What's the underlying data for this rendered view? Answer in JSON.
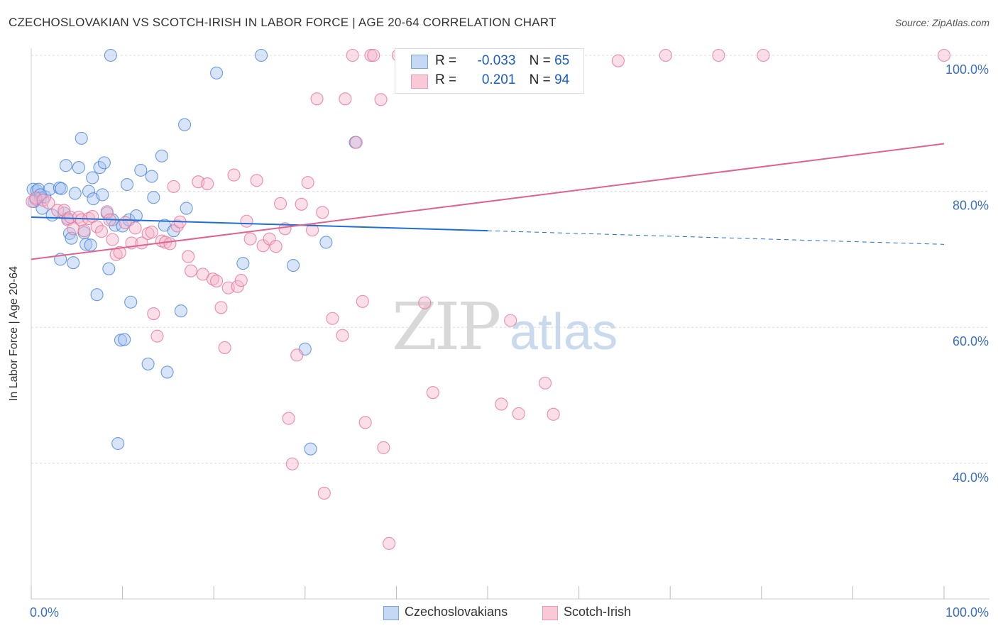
{
  "title": "CZECHOSLOVAKIAN VS SCOTCH-IRISH IN LABOR FORCE | AGE 20-64 CORRELATION CHART",
  "source": "Source: ZipAtlas.com",
  "watermark": {
    "zip": "ZIP",
    "atlas": "atlas"
  },
  "legend": {
    "rows": [
      {
        "r_label": "R =",
        "r_value": "-0.033",
        "n_label": "N =",
        "n_value": "65"
      },
      {
        "r_label": "R =",
        "r_value": "0.201",
        "n_label": "N =",
        "n_value": "94"
      }
    ]
  },
  "chart_data": {
    "type": "scatter",
    "title": "CZECHOSLOVAKIAN VS SCOTCH-IRISH IN LABOR FORCE | AGE 20-64 CORRELATION CHART",
    "xlabel": "",
    "ylabel": "In Labor Force | Age 20-64",
    "xlim": [
      0,
      100
    ],
    "ylim": [
      19,
      103
    ],
    "x_tick_labels": [
      "0.0%",
      "100.0%"
    ],
    "y_tick_labels": [
      "100.0%",
      "80.0%",
      "60.0%",
      "40.0%"
    ],
    "y_ticks": [
      100,
      80,
      60,
      40
    ],
    "grid": true,
    "colors": {
      "blue": "#4a86d8",
      "pink": "#e8729a",
      "blue_fill": "#a9c4ef",
      "pink_fill": "#f5b9cc",
      "axis_text": "#3b6fc8"
    },
    "series": [
      {
        "name": "Czechoslovakians",
        "color": "blue",
        "trend": {
          "x0": 0,
          "y0": 76.2,
          "x1": 50,
          "y1": 74.2,
          "dash_to_x": 100,
          "dash_to_y": 72.2
        },
        "points": [
          [
            0.2,
            80.3
          ],
          [
            0.5,
            78.8
          ],
          [
            0.6,
            80.1
          ],
          [
            0.8,
            80.3
          ],
          [
            1.0,
            79.0
          ],
          [
            1.2,
            77.5
          ],
          [
            1.5,
            79.2
          ],
          [
            2.0,
            80.3
          ],
          [
            2.3,
            76.5
          ],
          [
            3.1,
            80.5
          ],
          [
            3.2,
            70.0
          ],
          [
            3.3,
            80.4
          ],
          [
            3.6,
            76.8
          ],
          [
            3.8,
            83.8
          ],
          [
            4.0,
            76.0
          ],
          [
            4.2,
            73.8
          ],
          [
            4.4,
            73.1
          ],
          [
            4.6,
            69.5
          ],
          [
            4.8,
            79.7
          ],
          [
            5.2,
            83.5
          ],
          [
            5.5,
            87.8
          ],
          [
            5.8,
            73.9
          ],
          [
            6.0,
            72.2
          ],
          [
            6.3,
            80.0
          ],
          [
            6.5,
            72.1
          ],
          [
            6.7,
            82.0
          ],
          [
            6.8,
            78.9
          ],
          [
            7.2,
            64.8
          ],
          [
            7.5,
            83.5
          ],
          [
            7.8,
            79.5
          ],
          [
            8.0,
            84.2
          ],
          [
            8.3,
            76.8
          ],
          [
            8.5,
            68.6
          ],
          [
            8.7,
            100.0
          ],
          [
            8.9,
            75.8
          ],
          [
            9.2,
            75.0
          ],
          [
            9.5,
            42.9
          ],
          [
            9.8,
            58.1
          ],
          [
            10.0,
            74.9
          ],
          [
            10.2,
            58.2
          ],
          [
            10.5,
            81.0
          ],
          [
            10.7,
            75.8
          ],
          [
            10.9,
            63.7
          ],
          [
            11.5,
            76.4
          ],
          [
            12.0,
            83.1
          ],
          [
            12.8,
            54.6
          ],
          [
            13.2,
            82.2
          ],
          [
            13.4,
            79.1
          ],
          [
            14.3,
            85.2
          ],
          [
            14.6,
            75.0
          ],
          [
            14.9,
            53.4
          ],
          [
            15.6,
            74.2
          ],
          [
            16.4,
            62.4
          ],
          [
            16.8,
            89.8
          ],
          [
            17.0,
            77.5
          ],
          [
            20.3,
            97.4
          ],
          [
            23.2,
            69.4
          ],
          [
            25.2,
            100.0
          ],
          [
            28.7,
            69.1
          ],
          [
            30.0,
            56.8
          ],
          [
            30.6,
            42.1
          ],
          [
            32.3,
            72.5
          ],
          [
            35.5,
            87.2
          ],
          [
            0.3,
            78.5
          ],
          [
            1.0,
            79.5
          ]
        ]
      },
      {
        "name": "Scotch-Irish",
        "color": "pink",
        "trend": {
          "x0": 0,
          "y0": 70.0,
          "x1": 100,
          "y1": 87.0
        },
        "points": [
          [
            0.1,
            78.5
          ],
          [
            0.5,
            79.0
          ],
          [
            1.3,
            78.7
          ],
          [
            1.9,
            78.3
          ],
          [
            2.9,
            77.2
          ],
          [
            3.6,
            77.2
          ],
          [
            4.0,
            75.8
          ],
          [
            4.3,
            76.2
          ],
          [
            4.6,
            74.5
          ],
          [
            5.2,
            76.2
          ],
          [
            5.5,
            75.8
          ],
          [
            5.8,
            74.2
          ],
          [
            6.3,
            76.0
          ],
          [
            6.7,
            76.3
          ],
          [
            7.2,
            74.8
          ],
          [
            7.7,
            74.1
          ],
          [
            8.3,
            77.0
          ],
          [
            8.6,
            75.8
          ],
          [
            8.9,
            72.9
          ],
          [
            9.3,
            70.7
          ],
          [
            9.7,
            71.0
          ],
          [
            10.3,
            75.4
          ],
          [
            11.0,
            72.4
          ],
          [
            11.4,
            74.6
          ],
          [
            12.1,
            72.4
          ],
          [
            12.8,
            73.8
          ],
          [
            13.2,
            74.0
          ],
          [
            13.4,
            62.0
          ],
          [
            13.8,
            58.7
          ],
          [
            14.3,
            72.7
          ],
          [
            14.7,
            72.5
          ],
          [
            15.2,
            72.3
          ],
          [
            15.6,
            80.7
          ],
          [
            16.0,
            74.9
          ],
          [
            16.3,
            75.5
          ],
          [
            17.2,
            70.4
          ],
          [
            17.5,
            68.3
          ],
          [
            18.3,
            81.4
          ],
          [
            18.8,
            67.8
          ],
          [
            19.3,
            81.1
          ],
          [
            19.9,
            67.1
          ],
          [
            20.3,
            66.8
          ],
          [
            20.8,
            62.9
          ],
          [
            21.2,
            57.0
          ],
          [
            21.6,
            65.8
          ],
          [
            22.2,
            82.4
          ],
          [
            22.6,
            66.0
          ],
          [
            23.0,
            66.9
          ],
          [
            23.6,
            75.6
          ],
          [
            24.0,
            73.0
          ],
          [
            24.7,
            81.6
          ],
          [
            25.4,
            72.0
          ],
          [
            26.1,
            73.0
          ],
          [
            26.8,
            71.9
          ],
          [
            27.3,
            78.2
          ],
          [
            27.8,
            74.5
          ],
          [
            28.2,
            46.6
          ],
          [
            28.6,
            39.9
          ],
          [
            29.1,
            55.9
          ],
          [
            29.6,
            78.1
          ],
          [
            30.3,
            81.3
          ],
          [
            30.8,
            74.3
          ],
          [
            31.3,
            93.6
          ],
          [
            31.9,
            76.9
          ],
          [
            32.1,
            35.6
          ],
          [
            33.0,
            61.3
          ],
          [
            34.1,
            58.8
          ],
          [
            34.4,
            93.6
          ],
          [
            35.2,
            100.0
          ],
          [
            35.6,
            87.2
          ],
          [
            36.3,
            63.8
          ],
          [
            36.6,
            46.0
          ],
          [
            37.2,
            100.0
          ],
          [
            37.5,
            100.0
          ],
          [
            38.3,
            93.5
          ],
          [
            38.6,
            42.3
          ],
          [
            39.2,
            28.2
          ],
          [
            40.2,
            100.0
          ],
          [
            42.0,
            100.0
          ],
          [
            43.1,
            63.6
          ],
          [
            44.0,
            50.4
          ],
          [
            46.2,
            100.0
          ],
          [
            48.6,
            100.0
          ],
          [
            51.5,
            48.7
          ],
          [
            52.5,
            61.0
          ],
          [
            53.4,
            47.3
          ],
          [
            56.3,
            51.8
          ],
          [
            57.2,
            47.2
          ],
          [
            59.3,
            100.0
          ],
          [
            64.3,
            99.2
          ],
          [
            69.5,
            100.0
          ],
          [
            75.3,
            100.0
          ],
          [
            80.2,
            100.0
          ],
          [
            100.0,
            100.0
          ]
        ]
      }
    ]
  },
  "bottom_legend": {
    "items": [
      "Czechoslovakians",
      "Scotch-Irish"
    ]
  }
}
